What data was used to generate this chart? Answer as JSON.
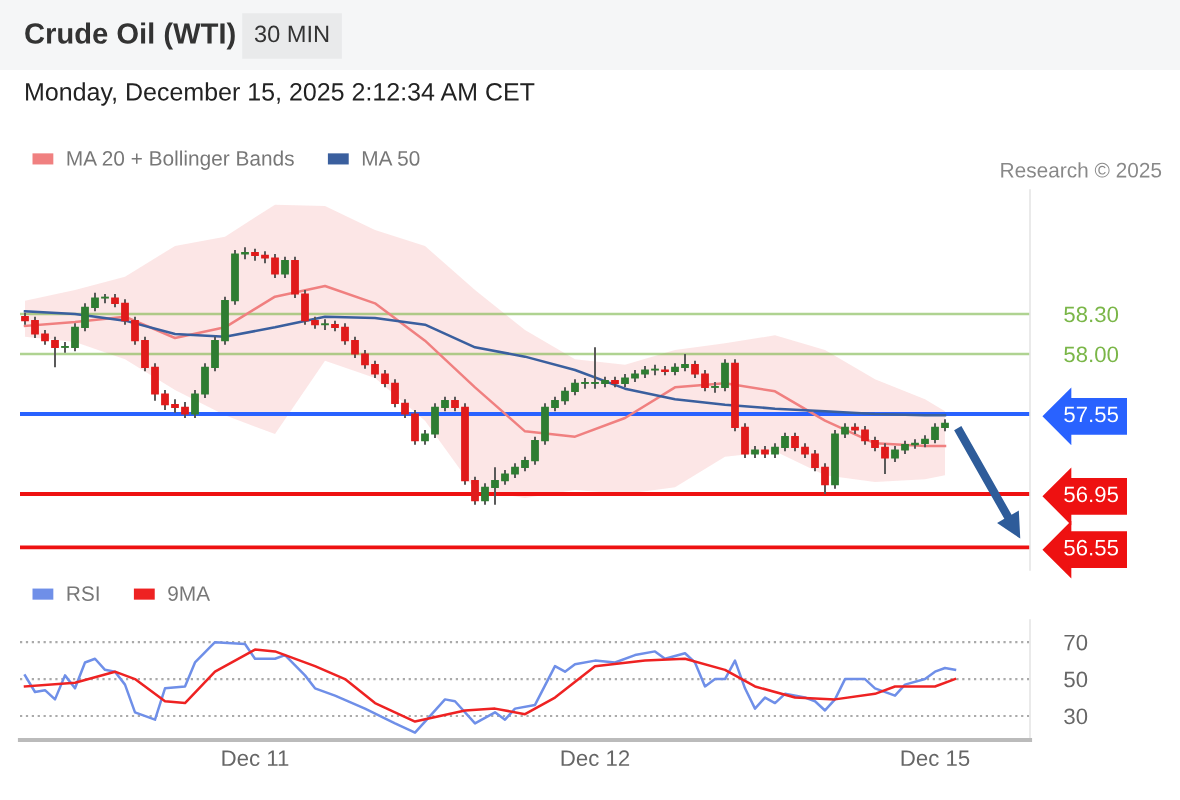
{
  "chart_data": [
    {
      "type": "candlestick",
      "title": "Crude Oil (WTI)",
      "subtitle": "30 MIN",
      "annotations": [
        "Monday, December 15, 2025 2:12:34 AM CET",
        "Research © 2025"
      ],
      "categories": [
        null,
        null,
        null,
        null,
        null,
        null,
        null,
        null,
        null,
        null,
        null,
        null,
        null,
        null,
        null,
        null,
        null,
        null,
        null,
        null,
        null,
        null,
        null,
        null,
        null,
        null,
        null,
        null,
        null,
        null,
        null,
        null,
        null,
        null,
        null,
        null,
        null,
        null,
        null,
        null,
        null,
        null,
        null,
        null,
        null,
        null,
        null,
        null,
        null,
        null,
        null,
        null,
        null,
        null,
        null,
        null,
        null,
        null,
        null,
        null,
        null,
        null,
        null,
        null,
        null,
        null,
        null,
        null,
        null,
        null,
        null,
        null,
        null,
        null,
        null,
        null,
        null,
        null,
        null,
        null,
        null,
        null,
        null,
        null,
        null,
        null,
        null,
        null,
        null,
        null,
        null,
        null,
        null,
        null,
        null,
        null,
        null,
        null,
        null,
        null,
        null
      ],
      "ohlc": [
        [
          58.28,
          58.31,
          58.22,
          58.25
        ],
        [
          58.25,
          58.28,
          58.12,
          58.15
        ],
        [
          58.15,
          58.18,
          58.07,
          58.1
        ],
        [
          58.1,
          58.13,
          57.9,
          58.05
        ],
        [
          58.05,
          58.09,
          58.01,
          58.05
        ],
        [
          58.05,
          58.23,
          58.02,
          58.2
        ],
        [
          58.2,
          58.38,
          58.17,
          58.35
        ],
        [
          58.35,
          58.46,
          58.32,
          58.42
        ],
        [
          58.42,
          58.45,
          58.38,
          58.42
        ],
        [
          58.42,
          58.45,
          58.35,
          58.38
        ],
        [
          58.38,
          58.41,
          58.22,
          58.25
        ],
        [
          58.25,
          58.28,
          58.07,
          58.1
        ],
        [
          58.1,
          58.13,
          57.87,
          57.9
        ],
        [
          57.9,
          57.93,
          57.65,
          57.7
        ],
        [
          57.7,
          57.73,
          57.58,
          57.62
        ],
        [
          57.62,
          57.66,
          57.56,
          57.6
        ],
        [
          57.6,
          57.64,
          57.52,
          57.55
        ],
        [
          57.55,
          57.73,
          57.52,
          57.7
        ],
        [
          57.7,
          57.93,
          57.67,
          57.9
        ],
        [
          57.9,
          58.13,
          57.87,
          58.1
        ],
        [
          58.1,
          58.43,
          58.07,
          58.4
        ],
        [
          58.4,
          58.78,
          58.37,
          58.75
        ],
        [
          58.75,
          58.8,
          58.71,
          58.76
        ],
        [
          58.76,
          58.79,
          58.7,
          58.74
        ],
        [
          58.74,
          58.77,
          58.68,
          58.72
        ],
        [
          58.72,
          58.75,
          58.57,
          58.6
        ],
        [
          58.6,
          58.73,
          58.57,
          58.7
        ],
        [
          58.7,
          58.73,
          58.42,
          58.45
        ],
        [
          58.45,
          58.48,
          58.22,
          58.25
        ],
        [
          58.25,
          58.28,
          58.19,
          58.22
        ],
        [
          58.22,
          58.26,
          58.18,
          58.22
        ],
        [
          58.22,
          58.25,
          58.17,
          58.2
        ],
        [
          58.2,
          58.23,
          58.07,
          58.1
        ],
        [
          58.1,
          58.13,
          57.97,
          58.0
        ],
        [
          58.0,
          58.03,
          57.89,
          57.92
        ],
        [
          57.92,
          57.95,
          57.82,
          57.85
        ],
        [
          57.85,
          57.88,
          57.75,
          57.78
        ],
        [
          57.78,
          57.81,
          57.6,
          57.63
        ],
        [
          57.63,
          57.66,
          57.52,
          57.55
        ],
        [
          57.55,
          57.58,
          57.32,
          57.35
        ],
        [
          57.35,
          57.43,
          57.32,
          57.4
        ],
        [
          57.4,
          57.63,
          57.37,
          57.6
        ],
        [
          57.6,
          57.68,
          57.57,
          57.65
        ],
        [
          57.65,
          57.68,
          57.57,
          57.6
        ],
        [
          57.6,
          57.63,
          57.02,
          57.05
        ],
        [
          57.05,
          57.08,
          56.87,
          56.9
        ],
        [
          56.9,
          57.03,
          56.87,
          57.0
        ],
        [
          57.0,
          57.15,
          56.87,
          57.05
        ],
        [
          57.05,
          57.13,
          57.02,
          57.1
        ],
        [
          57.1,
          57.18,
          57.07,
          57.15
        ],
        [
          57.15,
          57.23,
          57.12,
          57.2
        ],
        [
          57.2,
          57.38,
          57.17,
          57.35
        ],
        [
          57.35,
          57.63,
          57.32,
          57.6
        ],
        [
          57.6,
          57.68,
          57.57,
          57.65
        ],
        [
          57.65,
          57.75,
          57.62,
          57.72
        ],
        [
          57.72,
          57.81,
          57.69,
          57.78
        ],
        [
          57.78,
          57.82,
          57.74,
          57.78
        ],
        [
          57.78,
          58.05,
          57.74,
          57.78
        ],
        [
          57.78,
          57.83,
          57.75,
          57.8
        ],
        [
          57.8,
          57.83,
          57.75,
          57.78
        ],
        [
          57.78,
          57.85,
          57.75,
          57.82
        ],
        [
          57.82,
          57.88,
          57.79,
          57.85
        ],
        [
          57.85,
          57.91,
          57.82,
          57.88
        ],
        [
          57.88,
          57.92,
          57.84,
          57.88
        ],
        [
          57.88,
          57.91,
          57.84,
          57.87
        ],
        [
          57.87,
          57.93,
          57.84,
          57.9
        ],
        [
          57.9,
          58.0,
          57.87,
          57.92
        ],
        [
          57.92,
          57.95,
          57.82,
          57.85
        ],
        [
          57.85,
          57.88,
          57.72,
          57.75
        ],
        [
          57.75,
          57.79,
          57.71,
          57.75
        ],
        [
          57.75,
          57.96,
          57.72,
          57.93
        ],
        [
          57.93,
          57.96,
          57.42,
          57.45
        ],
        [
          57.45,
          57.48,
          57.22,
          57.25
        ],
        [
          57.25,
          57.31,
          57.22,
          57.28
        ],
        [
          57.28,
          57.31,
          57.22,
          57.25
        ],
        [
          57.25,
          57.33,
          57.22,
          57.3
        ],
        [
          57.3,
          57.41,
          57.27,
          57.38
        ],
        [
          57.38,
          57.41,
          57.27,
          57.3
        ],
        [
          57.3,
          57.33,
          57.22,
          57.25
        ],
        [
          57.25,
          57.28,
          57.12,
          57.15
        ],
        [
          57.15,
          57.18,
          56.95,
          57.02
        ],
        [
          57.02,
          57.43,
          56.99,
          57.4
        ],
        [
          57.4,
          57.48,
          57.37,
          57.45
        ],
        [
          57.45,
          57.48,
          57.4,
          57.43
        ],
        [
          57.43,
          57.46,
          57.32,
          57.35
        ],
        [
          57.35,
          57.38,
          57.27,
          57.3
        ],
        [
          57.3,
          57.33,
          57.1,
          57.22
        ],
        [
          57.22,
          57.31,
          57.19,
          57.28
        ],
        [
          57.28,
          57.35,
          57.25,
          57.32
        ],
        [
          57.32,
          57.36,
          57.29,
          57.33
        ],
        [
          57.33,
          57.39,
          57.3,
          57.36
        ],
        [
          57.36,
          57.48,
          57.33,
          57.45
        ],
        [
          57.45,
          57.51,
          57.42,
          57.48
        ],
        null,
        null,
        null,
        null,
        null,
        null,
        null,
        null
      ],
      "series": [
        {
          "name": "MA 20 + Bollinger Bands",
          "type": "line",
          "color": "#f08080",
          "values": [
            58.21,
            null,
            null,
            null,
            null,
            58.24,
            null,
            null,
            null,
            null,
            58.28,
            null,
            null,
            null,
            null,
            58.12,
            null,
            null,
            null,
            null,
            58.2,
            null,
            null,
            null,
            null,
            58.43,
            null,
            null,
            null,
            null,
            58.51,
            null,
            null,
            null,
            null,
            58.38,
            null,
            null,
            null,
            null,
            58.1,
            null,
            null,
            null,
            null,
            57.75,
            null,
            null,
            null,
            null,
            57.42,
            null,
            null,
            null,
            null,
            57.38,
            null,
            null,
            null,
            null,
            57.52,
            null,
            null,
            null,
            null,
            57.75,
            null,
            null,
            null,
            null,
            57.78,
            null,
            null,
            null,
            null,
            57.72,
            null,
            null,
            null,
            null,
            57.5,
            null,
            null,
            null,
            null,
            57.33,
            null,
            null,
            null,
            null,
            57.31,
            null,
            57.31,
            null,
            null,
            null,
            null,
            null,
            null,
            null,
            null
          ],
          "upper": [
            58.4,
            null,
            null,
            null,
            null,
            58.48,
            null,
            null,
            null,
            null,
            58.58,
            null,
            null,
            null,
            null,
            58.81,
            null,
            null,
            null,
            null,
            58.88,
            null,
            null,
            null,
            null,
            59.12,
            null,
            null,
            null,
            null,
            59.11,
            null,
            null,
            null,
            null,
            58.93,
            null,
            null,
            null,
            null,
            58.81,
            null,
            null,
            null,
            null,
            58.48,
            null,
            null,
            null,
            null,
            58.18,
            null,
            null,
            null,
            null,
            57.96,
            null,
            null,
            null,
            null,
            57.92,
            null,
            null,
            null,
            null,
            58.03,
            null,
            null,
            null,
            null,
            58.08,
            null,
            null,
            null,
            null,
            58.14,
            null,
            null,
            null,
            null,
            58.03,
            null,
            null,
            null,
            null,
            57.81,
            null,
            null,
            null,
            null,
            57.66,
            null,
            57.57,
            null,
            null,
            null,
            null,
            null,
            null,
            null,
            null
          ],
          "lower": [
            58.13,
            null,
            null,
            null,
            null,
            58.09,
            null,
            null,
            null,
            null,
            57.96,
            null,
            null,
            null,
            null,
            57.73,
            null,
            null,
            null,
            null,
            57.54,
            null,
            null,
            null,
            null,
            57.4,
            null,
            null,
            null,
            null,
            57.95,
            null,
            null,
            null,
            null,
            57.82,
            null,
            null,
            null,
            null,
            57.5,
            null,
            null,
            null,
            null,
            56.98,
            null,
            null,
            null,
            null,
            56.92,
            null,
            null,
            null,
            null,
            56.98,
            null,
            null,
            null,
            null,
            56.95,
            null,
            null,
            null,
            null,
            57.0,
            null,
            null,
            null,
            null,
            57.23,
            null,
            null,
            null,
            null,
            57.27,
            null,
            null,
            null,
            null,
            57.09,
            null,
            null,
            null,
            null,
            57.04,
            null,
            null,
            null,
            null,
            57.06,
            null,
            57.09,
            null,
            null,
            null,
            null,
            null,
            null,
            null,
            null
          ]
        },
        {
          "name": "MA 50",
          "type": "line",
          "color": "#3a5f9e",
          "values": [
            58.32,
            null,
            null,
            null,
            null,
            58.3,
            null,
            null,
            null,
            null,
            58.25,
            null,
            null,
            null,
            null,
            58.15,
            null,
            null,
            null,
            null,
            58.13,
            null,
            null,
            null,
            null,
            58.2,
            null,
            null,
            null,
            null,
            58.28,
            null,
            null,
            null,
            null,
            58.27,
            null,
            null,
            null,
            null,
            58.22,
            null,
            null,
            null,
            null,
            58.05,
            null,
            null,
            null,
            null,
            57.98,
            null,
            null,
            null,
            null,
            57.88,
            null,
            null,
            null,
            null,
            57.74,
            null,
            null,
            null,
            null,
            57.66,
            null,
            null,
            null,
            null,
            57.62,
            null,
            null,
            null,
            null,
            57.59,
            null,
            null,
            null,
            null,
            57.57,
            null,
            null,
            null,
            null,
            57.55,
            null,
            null,
            null,
            null,
            57.54,
            null,
            57.54,
            null,
            null,
            null,
            null,
            null,
            null,
            null,
            null
          ]
        }
      ],
      "ref_lines": [
        {
          "axis": "y",
          "value": 58.3,
          "color": "#7ab648"
        },
        {
          "axis": "y",
          "value": 58.0,
          "color": "#7ab648"
        },
        {
          "axis": "y",
          "value": 57.55,
          "color": "#2962ff"
        },
        {
          "axis": "y",
          "value": 56.95,
          "color": "#ee1111"
        },
        {
          "axis": "y",
          "value": 56.55,
          "color": "#ee1111"
        }
      ],
      "ylim": [
        56.38,
        59.23
      ],
      "yticks": [
        {
          "value": 58.3,
          "label": "58.30"
        },
        {
          "value": 58.0,
          "label": "58.00"
        },
        {
          "value": 57.55,
          "label": "57.55"
        },
        {
          "value": 56.95,
          "label": "56.95"
        },
        {
          "value": 56.55,
          "label": "56.55"
        }
      ],
      "legend": "top left",
      "tick_labels": "y"
    },
    {
      "type": "line",
      "series": [
        {
          "name": "RSI",
          "color": "#6f8fe8",
          "values": [
            52,
            43,
            44,
            39,
            52,
            45,
            59,
            61,
            55,
            54,
            47,
            32,
            null,
            28,
            45,
            null,
            46,
            59,
            null,
            70,
            null,
            null,
            69,
            61,
            null,
            61,
            63,
            null,
            52,
            45,
            null,
            41,
            null,
            null,
            34,
            null,
            null,
            26,
            null,
            21,
            27,
            null,
            39,
            38,
            null,
            26,
            null,
            32,
            28,
            34,
            null,
            36,
            null,
            57,
            54,
            58,
            null,
            60,
            null,
            59,
            null,
            63,
            null,
            65,
            61,
            null,
            64,
            59,
            46,
            50,
            50,
            60,
            45,
            34,
            40,
            37,
            42,
            null,
            40,
            38,
            33,
            39,
            50,
            null,
            50,
            45,
            null,
            41,
            47,
            null,
            50,
            54,
            56,
            55,
            null,
            null,
            null,
            null,
            null,
            null,
            null
          ]
        },
        {
          "name": "9MA",
          "color": "#ee2222",
          "values": [
            46,
            null,
            null,
            null,
            null,
            48,
            null,
            null,
            null,
            54,
            null,
            50,
            null,
            null,
            38,
            null,
            37,
            null,
            null,
            54,
            null,
            null,
            null,
            66,
            null,
            65,
            null,
            null,
            null,
            57,
            null,
            null,
            50,
            null,
            null,
            37,
            null,
            null,
            null,
            27,
            null,
            null,
            null,
            null,
            33,
            null,
            null,
            34,
            null,
            null,
            31,
            null,
            null,
            40,
            null,
            null,
            null,
            57,
            null,
            null,
            null,
            null,
            60,
            null,
            null,
            null,
            61,
            null,
            null,
            null,
            55,
            null,
            null,
            46,
            null,
            null,
            null,
            40,
            null,
            null,
            null,
            39,
            null,
            null,
            null,
            42,
            null,
            46,
            null,
            null,
            null,
            46,
            null,
            50,
            null,
            null,
            null,
            null,
            null,
            null,
            null
          ]
        }
      ],
      "categories": [
        null,
        null,
        null,
        null,
        null,
        null,
        null,
        null,
        null,
        null,
        null,
        null,
        null,
        null,
        null,
        null,
        null,
        null,
        null,
        null,
        null,
        null,
        null,
        "Dec 11",
        null,
        null,
        null,
        null,
        null,
        null,
        null,
        null,
        null,
        null,
        null,
        null,
        null,
        null,
        null,
        null,
        null,
        null,
        null,
        null,
        null,
        null,
        null,
        null,
        null,
        null,
        null,
        null,
        null,
        null,
        null,
        null,
        null,
        "Dec 12",
        null,
        null,
        null,
        null,
        null,
        null,
        null,
        null,
        null,
        null,
        null,
        null,
        null,
        null,
        null,
        null,
        null,
        null,
        null,
        null,
        null,
        null,
        null,
        null,
        null,
        null,
        null,
        null,
        null,
        null,
        null,
        null,
        null,
        "Dec 15",
        null,
        null,
        null,
        null,
        null,
        null,
        null,
        null,
        null
      ],
      "ylim": [
        17,
        82
      ],
      "yticks": [
        30,
        50,
        70
      ],
      "grid": "y",
      "legend": "top left"
    }
  ]
}
